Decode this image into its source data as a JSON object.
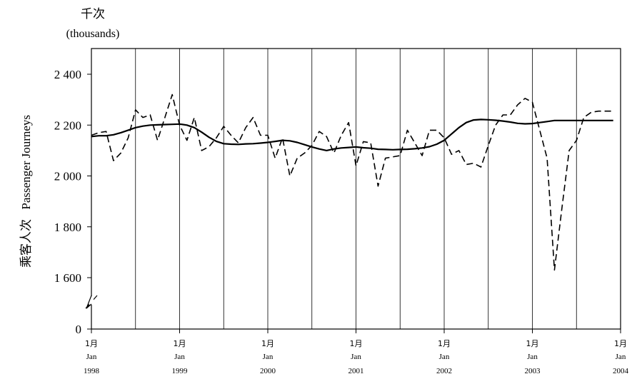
{
  "chart_data": {
    "type": "line",
    "unit_label_cn": "千次",
    "unit_label_en": "(thousands)",
    "ylabel_cn": "乘客人次",
    "ylabel_en": "Passenger Journeys",
    "ylim": [
      0,
      2500
    ],
    "y_axis_break": true,
    "y_ticks": [
      {
        "value": 0,
        "label": "0"
      },
      {
        "value": 1600,
        "label": "1 600"
      },
      {
        "value": 1800,
        "label": "1 800"
      },
      {
        "value": 2000,
        "label": "2 000"
      },
      {
        "value": 2200,
        "label": "2 200"
      },
      {
        "value": 2400,
        "label": "2 400"
      }
    ],
    "x_ticks": [
      {
        "cn": "1月",
        "en": "Jan",
        "year": "1998"
      },
      {
        "cn": "1月",
        "en": "Jan",
        "year": "1999"
      },
      {
        "cn": "1月",
        "en": "Jan",
        "year": "2000"
      },
      {
        "cn": "1月",
        "en": "Jan",
        "year": "2001"
      },
      {
        "cn": "1月",
        "en": "Jan",
        "year": "2002"
      },
      {
        "cn": "1月",
        "en": "Jan",
        "year": "2003"
      },
      {
        "cn": "1月",
        "en": "Jan",
        "year": "2004"
      }
    ],
    "grid_months": [
      "1998-07",
      "1999-01",
      "1999-07",
      "2000-01",
      "2000-07",
      "2001-01",
      "2001-07",
      "2002-01",
      "2002-07",
      "2003-01",
      "2003-07"
    ],
    "x": [
      "1998-01",
      "1998-02",
      "1998-03",
      "1998-04",
      "1998-05",
      "1998-06",
      "1998-07",
      "1998-08",
      "1998-09",
      "1998-10",
      "1998-11",
      "1998-12",
      "1999-01",
      "1999-02",
      "1999-03",
      "1999-04",
      "1999-05",
      "1999-06",
      "1999-07",
      "1999-08",
      "1999-09",
      "1999-10",
      "1999-11",
      "1999-12",
      "2000-01",
      "2000-02",
      "2000-03",
      "2000-04",
      "2000-05",
      "2000-06",
      "2000-07",
      "2000-08",
      "2000-09",
      "2000-10",
      "2000-11",
      "2000-12",
      "2001-01",
      "2001-02",
      "2001-03",
      "2001-04",
      "2001-05",
      "2001-06",
      "2001-07",
      "2001-08",
      "2001-09",
      "2001-10",
      "2001-11",
      "2001-12",
      "2002-01",
      "2002-02",
      "2002-03",
      "2002-04",
      "2002-05",
      "2002-06",
      "2002-07",
      "2002-08",
      "2002-09",
      "2002-10",
      "2002-11",
      "2002-12",
      "2003-01",
      "2003-02",
      "2003-03",
      "2003-04",
      "2003-05",
      "2003-06",
      "2003-07",
      "2003-08",
      "2003-09",
      "2003-10",
      "2003-11",
      "2003-12"
    ],
    "series": [
      {
        "style": "dashed",
        "values": [
          2160,
          2170,
          2175,
          2060,
          2090,
          2150,
          2260,
          2230,
          2240,
          2140,
          2230,
          2320,
          2200,
          2140,
          2230,
          2100,
          2115,
          2150,
          2195,
          2160,
          2130,
          2190,
          2230,
          2160,
          2160,
          2070,
          2150,
          2000,
          2070,
          2090,
          2120,
          2175,
          2155,
          2090,
          2160,
          2210,
          2040,
          2135,
          2130,
          1960,
          2070,
          2075,
          2080,
          2180,
          2130,
          2080,
          2180,
          2180,
          2150,
          2085,
          2100,
          2045,
          2050,
          2035,
          2120,
          2200,
          2240,
          2240,
          2280,
          2305,
          2290,
          2180,
          2070,
          1630,
          1870,
          2100,
          2140,
          2230,
          2250,
          2255,
          2255,
          2255
        ]
      },
      {
        "style": "solid",
        "values": [
          2155,
          2158,
          2158,
          2162,
          2170,
          2180,
          2190,
          2196,
          2200,
          2201,
          2202,
          2203,
          2204,
          2200,
          2190,
          2172,
          2152,
          2136,
          2127,
          2125,
          2124,
          2126,
          2127,
          2129,
          2132,
          2136,
          2140,
          2138,
          2132,
          2123,
          2114,
          2106,
          2100,
          2106,
          2110,
          2112,
          2114,
          2111,
          2109,
          2105,
          2104,
          2103,
          2104,
          2105,
          2107,
          2110,
          2115,
          2125,
          2140,
          2165,
          2190,
          2210,
          2220,
          2222,
          2221,
          2219,
          2216,
          2212,
          2207,
          2205,
          2206,
          2210,
          2214,
          2218,
          2218,
          2218,
          2218,
          2218,
          2218,
          2218,
          2218,
          2218
        ]
      }
    ]
  }
}
